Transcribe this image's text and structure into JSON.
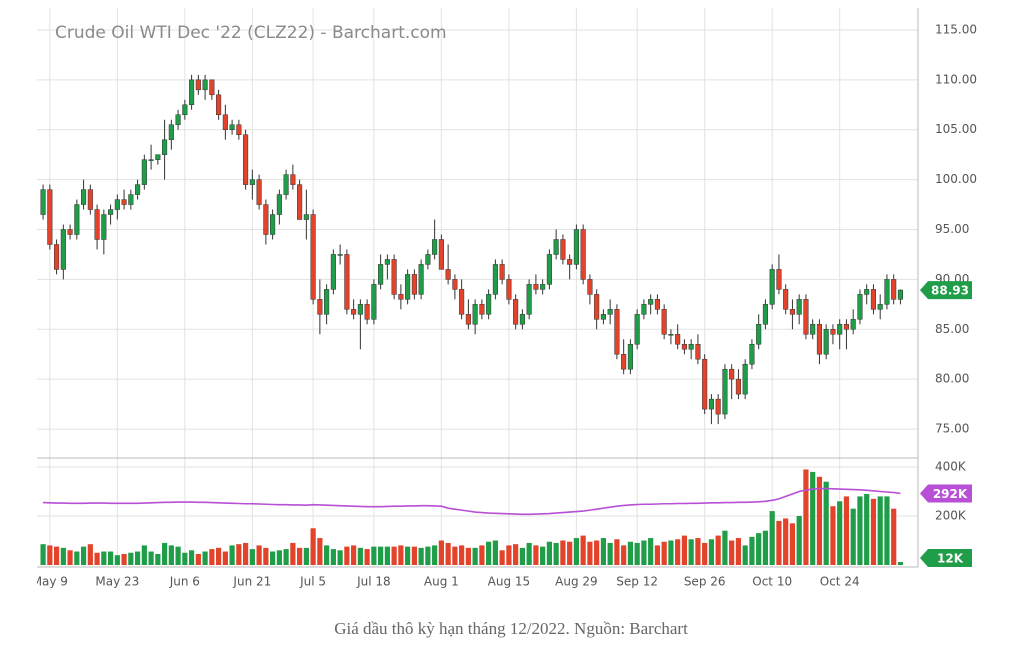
{
  "chart_data": {
    "type": "candlestick",
    "title": "Crude Oil WTI Dec '22 (CLZ22) - Barchart.com",
    "caption": "Giá dầu thô kỳ hạn tháng 12/2022. Nguồn: Barchart",
    "up_color": "#1f9d48",
    "down_color": "#e2432a",
    "ma_color": "#b84fd6",
    "xlim": [
      -0.9,
      129.6
    ],
    "xticks": [
      {
        "value": 1,
        "label": "May 9"
      },
      {
        "value": 11,
        "label": "May 23"
      },
      {
        "value": 21,
        "label": "Jun 6"
      },
      {
        "value": 31,
        "label": "Jun 21"
      },
      {
        "value": 40,
        "label": "Jul 5"
      },
      {
        "value": 49,
        "label": "Jul 18"
      },
      {
        "value": 59,
        "label": "Aug 1"
      },
      {
        "value": 69,
        "label": "Aug 15"
      },
      {
        "value": 79,
        "label": "Aug 29"
      },
      {
        "value": 88,
        "label": "Sep 12"
      },
      {
        "value": 98,
        "label": "Sep 26"
      },
      {
        "value": 108,
        "label": "Oct 10"
      },
      {
        "value": 118,
        "label": "Oct 24"
      }
    ],
    "ylim": [
      72.1,
      117.2
    ],
    "yticks": [
      {
        "value": 75,
        "label": "75.00"
      },
      {
        "value": 80,
        "label": "80.00"
      },
      {
        "value": 85,
        "label": "85.00"
      },
      {
        "value": 90,
        "label": "90.00"
      },
      {
        "value": 95,
        "label": "95.00"
      },
      {
        "value": 100,
        "label": "100.00"
      },
      {
        "value": 105,
        "label": "105.00"
      },
      {
        "value": 110,
        "label": "110.00"
      },
      {
        "value": 115,
        "label": "115.00"
      }
    ],
    "last_price_label": "88.93",
    "ohlc": [
      [
        96.5,
        99.5,
        96,
        99
      ],
      [
        99,
        99.5,
        93,
        93.5
      ],
      [
        93.5,
        94,
        90.5,
        91
      ],
      [
        91,
        95.5,
        90,
        95
      ],
      [
        95,
        95.5,
        94,
        94.5
      ],
      [
        94.5,
        98,
        94,
        97.5
      ],
      [
        97.5,
        100,
        97,
        99
      ],
      [
        99,
        99.5,
        96.5,
        97
      ],
      [
        97,
        97.5,
        93,
        94
      ],
      [
        94,
        97,
        92.5,
        96.5
      ],
      [
        96.5,
        97.5,
        95.5,
        97
      ],
      [
        97,
        98.5,
        96,
        98
      ],
      [
        98,
        99,
        97,
        97.5
      ],
      [
        97.5,
        99,
        97,
        98.5
      ],
      [
        98.5,
        100,
        98,
        99.5
      ],
      [
        99.5,
        102.5,
        99,
        102
      ],
      [
        102,
        103.5,
        101,
        102
      ],
      [
        102,
        102.5,
        101.5,
        102.5
      ],
      [
        102.5,
        106,
        100,
        104
      ],
      [
        104,
        106,
        103,
        105.5
      ],
      [
        105.5,
        107,
        105,
        106.5
      ],
      [
        106.5,
        108,
        106,
        107.5
      ],
      [
        107.5,
        110.5,
        107,
        110
      ],
      [
        110,
        110.5,
        108.5,
        109
      ],
      [
        109,
        110.5,
        108,
        110
      ],
      [
        110,
        110,
        108,
        108.5
      ],
      [
        108.5,
        109,
        106,
        106.5
      ],
      [
        106.5,
        107.5,
        104,
        105
      ],
      [
        105,
        106,
        104.5,
        105.5
      ],
      [
        105.5,
        106,
        104,
        104.5
      ],
      [
        104.5,
        105,
        99,
        99.5
      ],
      [
        99.5,
        101,
        98,
        100
      ],
      [
        100,
        100.5,
        97,
        97.5
      ],
      [
        97.5,
        98,
        93.5,
        94.5
      ],
      [
        94.5,
        97,
        94,
        96.5
      ],
      [
        96.5,
        99,
        95.5,
        98.5
      ],
      [
        98.5,
        101,
        98,
        100.5
      ],
      [
        100.5,
        101.5,
        99,
        99.5
      ],
      [
        99.5,
        100,
        96,
        96
      ],
      [
        96,
        99,
        94,
        96.5
      ],
      [
        96.5,
        97,
        87.5,
        88
      ],
      [
        88,
        90,
        84.5,
        86.5
      ],
      [
        86.5,
        89.5,
        85.5,
        89
      ],
      [
        89,
        93,
        88.5,
        92.5
      ],
      [
        92.5,
        93.5,
        91.5,
        92.5
      ],
      [
        92.5,
        93,
        86.5,
        87
      ],
      [
        87,
        88,
        86,
        86.5
      ],
      [
        86.5,
        88,
        83,
        87.5
      ],
      [
        87.5,
        88,
        85.5,
        86
      ],
      [
        86,
        90,
        85.5,
        89.5
      ],
      [
        89.5,
        92.5,
        89,
        91.5
      ],
      [
        91.5,
        92.5,
        90,
        92
      ],
      [
        92,
        92.5,
        88,
        88.5
      ],
      [
        88.5,
        89.5,
        87,
        88
      ],
      [
        88,
        91,
        87.5,
        90.5
      ],
      [
        90.5,
        91,
        88,
        88.5
      ],
      [
        88.5,
        92,
        88,
        91.5
      ],
      [
        91.5,
        93,
        91,
        92.5
      ],
      [
        92.5,
        96,
        92,
        94
      ],
      [
        94,
        94.5,
        91,
        91
      ],
      [
        91,
        93.5,
        89.5,
        90
      ],
      [
        90,
        90.5,
        88,
        89
      ],
      [
        89,
        90,
        86,
        86.5
      ],
      [
        86.5,
        88,
        85,
        85.5
      ],
      [
        85.5,
        88,
        84.5,
        87.5
      ],
      [
        87.5,
        88,
        86,
        86.5
      ],
      [
        86.5,
        89,
        86,
        88.5
      ],
      [
        88.5,
        92,
        88,
        91.5
      ],
      [
        91.5,
        92,
        89.5,
        90
      ],
      [
        90,
        90.5,
        87.5,
        88
      ],
      [
        88,
        88.5,
        85,
        85.5
      ],
      [
        85.5,
        87,
        85,
        86.5
      ],
      [
        86.5,
        90,
        86,
        89.5
      ],
      [
        89.5,
        90.5,
        88.5,
        89
      ],
      [
        89,
        90,
        88.5,
        89.5
      ],
      [
        89.5,
        93,
        89,
        92.5
      ],
      [
        92.5,
        95,
        92,
        94
      ],
      [
        94,
        94.5,
        91.5,
        92
      ],
      [
        92,
        92.5,
        90,
        91.5
      ],
      [
        91.5,
        95.5,
        91,
        95
      ],
      [
        95,
        95.5,
        89.5,
        90
      ],
      [
        90,
        90.5,
        87.5,
        88.5
      ],
      [
        88.5,
        89,
        85,
        86
      ],
      [
        86,
        87,
        85.5,
        86.5
      ],
      [
        86.5,
        88,
        85.5,
        87
      ],
      [
        87,
        87.5,
        82,
        82.5
      ],
      [
        82.5,
        84,
        80.5,
        81
      ],
      [
        81,
        84,
        80.5,
        83.5
      ],
      [
        83.5,
        87,
        83,
        86.5
      ],
      [
        86.5,
        88,
        86,
        87.5
      ],
      [
        87.5,
        88.5,
        86.5,
        88
      ],
      [
        88,
        88.5,
        86.5,
        87
      ],
      [
        87,
        87.5,
        84,
        84.5
      ],
      [
        84.5,
        85,
        83.5,
        84.5
      ],
      [
        84.5,
        85.5,
        83,
        83.5
      ],
      [
        83.5,
        84,
        82.5,
        83
      ],
      [
        83,
        84,
        82,
        83.5
      ],
      [
        83.5,
        84.5,
        81.5,
        82
      ],
      [
        82,
        82.5,
        76.5,
        77
      ],
      [
        77,
        78.5,
        75.5,
        78
      ],
      [
        78,
        78.5,
        75.5,
        76.5
      ],
      [
        76.5,
        81.5,
        76,
        81
      ],
      [
        81,
        81.5,
        78,
        80
      ],
      [
        80,
        81,
        78,
        78.5
      ],
      [
        78.5,
        82,
        78,
        81.5
      ],
      [
        81.5,
        84,
        81,
        83.5
      ],
      [
        83.5,
        86.5,
        83,
        85.5
      ],
      [
        85.5,
        88,
        85,
        87.5
      ],
      [
        87.5,
        91.5,
        87,
        91
      ],
      [
        91,
        92.5,
        88.5,
        89
      ],
      [
        89,
        89.5,
        86.5,
        87
      ],
      [
        87,
        88,
        85,
        86.5
      ],
      [
        86.5,
        88.5,
        85.5,
        88
      ],
      [
        88,
        88.5,
        84,
        84.5
      ],
      [
        84.5,
        86,
        84,
        85.5
      ],
      [
        85.5,
        86,
        81.5,
        82.5
      ],
      [
        82.5,
        85.5,
        82,
        85
      ],
      [
        85,
        85.5,
        83.5,
        84.5
      ],
      [
        84.5,
        86,
        83,
        85.5
      ],
      [
        85.5,
        86,
        83,
        85
      ],
      [
        85,
        87,
        84.5,
        86
      ],
      [
        86,
        89,
        85.5,
        88.5
      ],
      [
        88.5,
        89.5,
        87.5,
        89
      ],
      [
        89,
        89.5,
        86.5,
        87
      ],
      [
        87,
        88.5,
        86,
        87.5
      ],
      [
        87.5,
        90.5,
        87,
        90
      ],
      [
        90,
        90.5,
        87.5,
        88
      ],
      [
        88,
        89,
        87.5,
        88.93
      ]
    ],
    "volume_ylim": [
      0,
      432.7
    ],
    "volume_yticks": [
      {
        "value": 200,
        "label": "200K"
      },
      {
        "value": 400,
        "label": "400K"
      }
    ],
    "volume": [
      85,
      80,
      75,
      70,
      60,
      55,
      75,
      85,
      50,
      55,
      55,
      40,
      45,
      50,
      55,
      80,
      55,
      45,
      90,
      80,
      75,
      50,
      60,
      45,
      55,
      65,
      70,
      55,
      80,
      85,
      90,
      65,
      80,
      70,
      55,
      60,
      65,
      90,
      70,
      70,
      150,
      110,
      80,
      65,
      60,
      75,
      80,
      70,
      65,
      75,
      75,
      75,
      75,
      80,
      75,
      75,
      70,
      75,
      80,
      100,
      90,
      75,
      80,
      70,
      70,
      80,
      95,
      100,
      60,
      80,
      85,
      70,
      90,
      80,
      75,
      95,
      90,
      100,
      95,
      110,
      120,
      95,
      100,
      110,
      90,
      105,
      80,
      95,
      90,
      100,
      110,
      80,
      95,
      100,
      105,
      120,
      105,
      110,
      90,
      105,
      120,
      140,
      100,
      110,
      80,
      115,
      130,
      140,
      220,
      180,
      190,
      170,
      200,
      390,
      380,
      360,
      340,
      240,
      260,
      280,
      230,
      280,
      290,
      270,
      280,
      280,
      230,
      12
    ],
    "volume_label": "12K",
    "volume_ma": [
      255,
      254,
      253,
      253,
      252,
      252,
      252,
      253,
      253,
      253,
      252,
      252,
      252,
      252,
      252,
      253,
      254,
      255,
      256,
      256,
      257,
      257,
      257,
      256,
      256,
      255,
      254,
      253,
      252,
      251,
      250,
      250,
      249,
      248,
      247,
      246,
      246,
      245,
      245,
      244,
      246,
      245,
      244,
      243,
      242,
      241,
      240,
      239,
      238,
      238,
      238,
      239,
      240,
      240,
      241,
      241,
      242,
      242,
      241,
      240,
      232,
      228,
      224,
      220,
      216,
      214,
      212,
      211,
      210,
      209,
      208,
      207,
      207,
      208,
      209,
      210,
      212,
      214,
      216,
      218,
      220,
      224,
      228,
      232,
      236,
      240,
      243,
      245,
      247,
      248,
      248,
      249,
      250,
      250,
      251,
      251,
      252,
      252,
      253,
      254,
      254,
      255,
      255,
      256,
      256,
      257,
      258,
      260,
      264,
      270,
      280,
      290,
      300,
      306,
      310,
      312,
      312,
      311,
      310,
      309,
      308,
      307,
      305,
      303,
      300,
      298,
      296,
      292
    ],
    "volume_ma_label": "292K"
  }
}
